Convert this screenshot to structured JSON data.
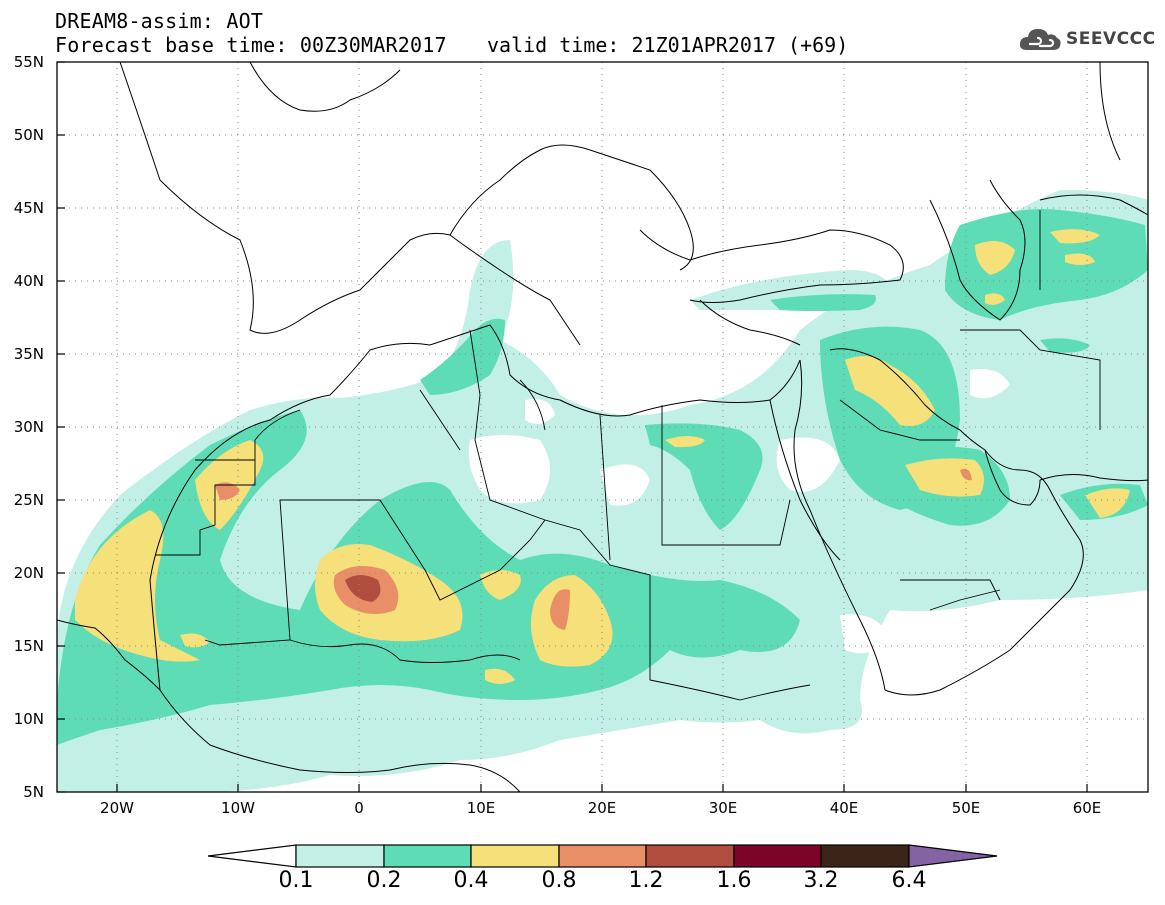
{
  "header": {
    "title": "DREAM8-assim: AOT",
    "base_time": "Forecast base time: 00Z30MAR2017",
    "valid_time": "valid time: 21Z01APR2017 (+69)"
  },
  "logo": {
    "text": "SEEVCCC",
    "icon": "cloud-icon"
  },
  "axes": {
    "lat_labels": [
      "55N",
      "50N",
      "45N",
      "40N",
      "35N",
      "30N",
      "25N",
      "20N",
      "15N",
      "10N",
      "5N"
    ],
    "lon_labels": [
      "20W",
      "10W",
      "0",
      "10E",
      "20E",
      "30E",
      "40E",
      "50E",
      "60E"
    ],
    "lat_range": [
      5,
      55
    ],
    "lon_range": [
      -25,
      65
    ],
    "grid": true
  },
  "colorbar": {
    "labels": [
      "0.1",
      "0.2",
      "0.4",
      "0.8",
      "1.2",
      "1.6",
      "3.2",
      "6.4"
    ],
    "colors": [
      "#ffffff",
      "#c2efe6",
      "#5ddcb5",
      "#f6e07a",
      "#e98f67",
      "#b14d3e",
      "#7d0429",
      "#3b2418",
      "#8363a3"
    ]
  }
}
